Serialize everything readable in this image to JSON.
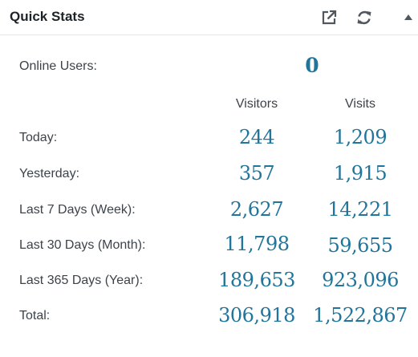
{
  "widget": {
    "title": "Quick Stats",
    "icons": {
      "external": "external-link-icon",
      "refresh": "refresh-icon",
      "collapse": "collapse-arrow-icon"
    },
    "accent_color": "#21759b"
  },
  "online": {
    "label": "Online Users:",
    "value": "0"
  },
  "columns": {
    "visitors": "Visitors",
    "visits": "Visits"
  },
  "rows": [
    {
      "label": "Today:",
      "visitors": "244",
      "visits": "1,209"
    },
    {
      "label": "Yesterday:",
      "visitors": "357",
      "visits": "1,915"
    },
    {
      "label": "Last 7 Days (Week):",
      "visitors": "2,627",
      "visits": "14,221"
    },
    {
      "label": "Last 30 Days (Month):",
      "visitors": "11,798",
      "visits": "59,655"
    },
    {
      "label": "Last 365 Days (Year):",
      "visitors": "189,653",
      "visits": "923,096"
    },
    {
      "label": "Total:",
      "visitors": "306,918",
      "visits": "1,522,867"
    }
  ]
}
